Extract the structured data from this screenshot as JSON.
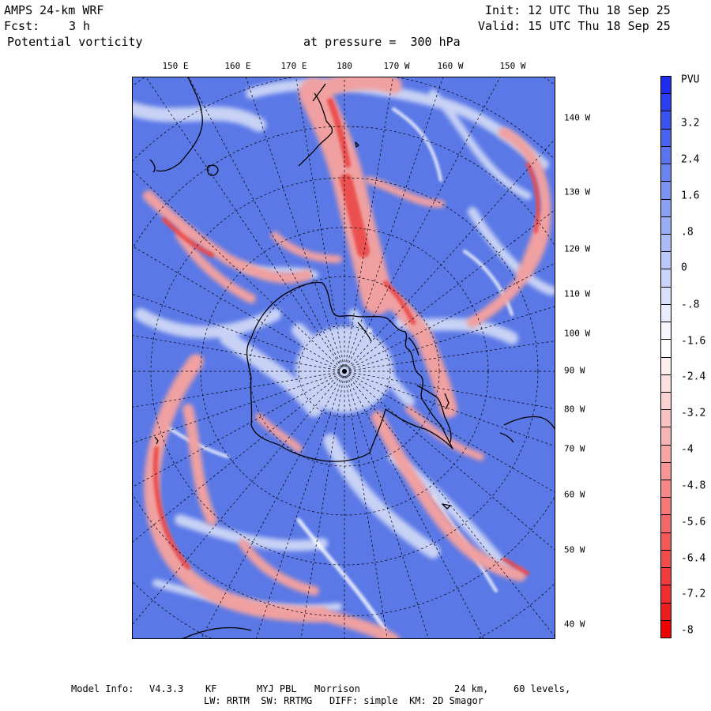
{
  "header": {
    "model": "AMPS 24-km WRF",
    "init": "Init: 12 UTC Thu 18 Sep 25",
    "fcst_label": "Fcst:",
    "fcst_value": "3 h",
    "valid": "Valid: 15 UTC Thu 18 Sep 25",
    "field": "Potential vorticity",
    "level": "at pressure =  300 hPa"
  },
  "map": {
    "top_longitudes": [
      "150 E",
      "160 E",
      "170 E",
      "180",
      "170 W",
      "160 W",
      "150 W"
    ],
    "right_longitudes": [
      "140 W",
      "130 W",
      "120 W",
      "110 W",
      "100 W",
      "90 W",
      "80 W",
      "70 W",
      "60 W",
      "50 W",
      "40 W"
    ],
    "colors": {
      "background_blue": "#5a78e6",
      "light_blue": "#c8d2f5",
      "pink": "#f0a0a0",
      "red": "#eb4646",
      "coast": "#000000",
      "grid": "#000000"
    }
  },
  "colorbar": {
    "unit": "PVU",
    "labels": [
      "3.2",
      "2.4",
      "1.6",
      ".8",
      "0",
      "-.8",
      "-1.6",
      "-2.4",
      "-3.2",
      "-4",
      "-4.8",
      "-5.6",
      "-6.4",
      "-7.2",
      "-8"
    ],
    "colors": [
      "#1e2cf0",
      "#2b3ff0",
      "#3a52ef",
      "#4a63ef",
      "#5a74ef",
      "#6a84f0",
      "#7a93f1",
      "#8aa1f3",
      "#9aaef4",
      "#aabbf6",
      "#bac8f8",
      "#cad5fa",
      "#dae1fc",
      "#eaedfd",
      "#f6f7fe",
      "#ffffff",
      "#fdeeee",
      "#fce0e0",
      "#fad2d2",
      "#f9c3c3",
      "#f8b4b4",
      "#f7a5a5",
      "#f69696",
      "#f58787",
      "#f47878",
      "#f36969",
      "#f25a5a",
      "#f14b4b",
      "#f03c3c",
      "#ef2d2d",
      "#ee1e1e",
      "#f00000"
    ]
  },
  "footer": {
    "line1_label": "Model Info:",
    "line1_version": "V4.3.3",
    "line1_cu": "KF",
    "line1_pbl": "MYJ PBL",
    "line1_mp": "Morrison",
    "line1_res": "24 km,",
    "line1_levels": "60 levels,",
    "line2": "LW: RRTM  SW: RRTMG   DIFF: simple  KM: 2D Smagor"
  }
}
